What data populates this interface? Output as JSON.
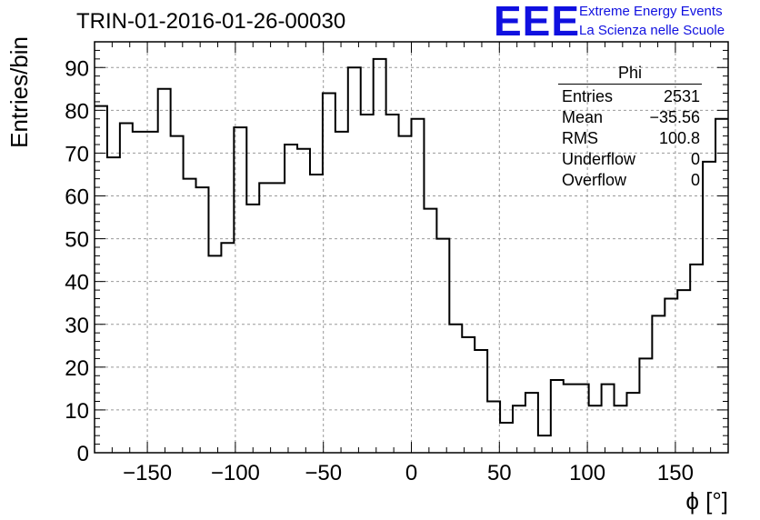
{
  "title": "TRIN-01-2016-01-26-00030",
  "logo": {
    "mark": "EEE",
    "line1": "Extreme Energy Events",
    "line2": "La Scienza nelle Scuole",
    "color": "#1010e0"
  },
  "stats": {
    "name": "Phi",
    "rows": [
      {
        "label": "Entries",
        "value": "2531"
      },
      {
        "label": "Mean",
        "value": "−35.56"
      },
      {
        "label": "RMS",
        "value": "100.8"
      },
      {
        "label": "Underflow",
        "value": "0"
      },
      {
        "label": "Overflow",
        "value": "0"
      }
    ]
  },
  "chart_data": {
    "type": "histogram",
    "xlabel": "ϕ [°]",
    "ylabel": "Entries/bin",
    "xlim": [
      -180,
      180
    ],
    "ylim": [
      0,
      96
    ],
    "bin_width": 7.2,
    "x_ticks": [
      "−150",
      "−100",
      "−50",
      "0",
      "50",
      "100",
      "150"
    ],
    "x_tick_values": [
      -150,
      -100,
      -50,
      0,
      50,
      100,
      150
    ],
    "y_ticks": [
      "0",
      "10",
      "20",
      "30",
      "40",
      "50",
      "60",
      "70",
      "80",
      "90"
    ],
    "y_tick_values": [
      0,
      10,
      20,
      30,
      40,
      50,
      60,
      70,
      80,
      90
    ],
    "grid": true,
    "line_color": "#000000",
    "values": [
      81,
      69,
      77,
      75,
      75,
      85,
      74,
      64,
      62,
      46,
      49,
      76,
      58,
      63,
      63,
      72,
      71,
      65,
      84,
      75,
      90,
      79,
      92,
      79,
      74,
      78,
      57,
      50,
      30,
      27,
      24,
      12,
      7,
      11,
      14,
      4,
      17,
      16,
      16,
      11,
      16,
      11,
      14,
      22,
      32,
      36,
      38,
      44,
      68,
      78
    ]
  }
}
